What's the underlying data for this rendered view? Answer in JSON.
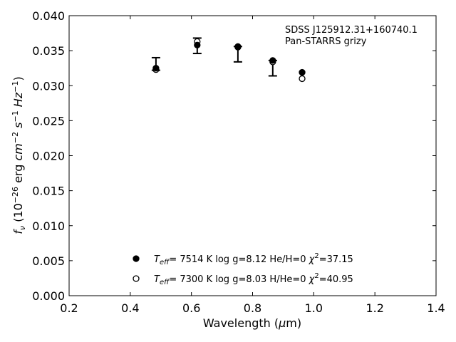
{
  "chart_data": {
    "type": "scatter",
    "xlabel": "Wavelength (μm)",
    "ylabel": "f_ν (10^-26 erg cm^-2 s^-1 Hz^-1)",
    "xlim": [
      0.2,
      1.4
    ],
    "ylim": [
      0.0,
      0.04
    ],
    "xticks": [
      "0.2",
      "0.4",
      "0.6",
      "0.8",
      "1.0",
      "1.2",
      "1.4"
    ],
    "yticks": [
      "0.000",
      "0.005",
      "0.010",
      "0.015",
      "0.020",
      "0.025",
      "0.030",
      "0.035",
      "0.040"
    ],
    "annotation": [
      "SDSS J125912.31+160740.1",
      "Pan-STARRS grizy"
    ],
    "grid": false,
    "observed": {
      "x": [
        0.484,
        0.619,
        0.752,
        0.866
      ],
      "y": [
        0.0331,
        0.0357,
        0.0345,
        0.0325
      ],
      "yerr": [
        0.0009,
        0.0011,
        0.0011,
        0.0011
      ]
    },
    "series": [
      {
        "marker": "filled",
        "x": [
          0.484,
          0.619,
          0.752,
          0.866,
          0.962
        ],
        "y": [
          0.0325,
          0.0358,
          0.0356,
          0.0336,
          0.0319
        ],
        "legend": {
          "teff": "7514 K",
          "logg": "log g=8.12",
          "comp": "He/H=0",
          "chi": "=37.15"
        }
      },
      {
        "marker": "open",
        "x": [
          0.484,
          0.619,
          0.752,
          0.866,
          0.962
        ],
        "y": [
          0.0323,
          0.0363,
          0.0355,
          0.0334,
          0.031
        ],
        "legend": {
          "teff": "7300 K",
          "logg": "log g=8.03",
          "comp": "H/He=0",
          "chi": "=40.95"
        }
      }
    ],
    "legend_placement": "lower-center",
    "colors": {
      "marker": "#000000"
    }
  }
}
